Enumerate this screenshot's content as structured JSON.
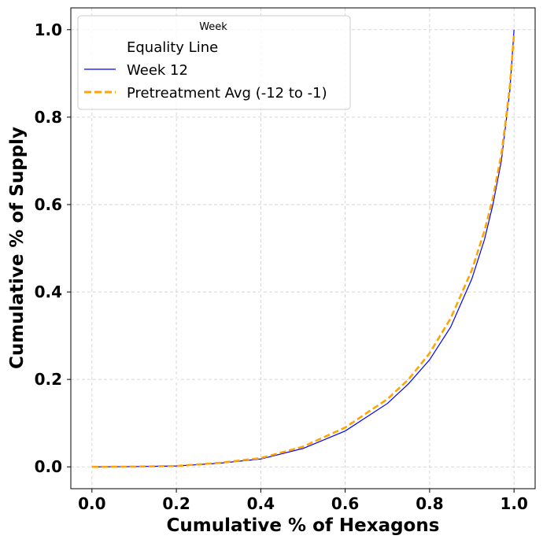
{
  "chart_data": {
    "type": "line",
    "xlabel": "Cumulative % of Hexagons",
    "ylabel": "Cumulative % of Supply",
    "xlim": [
      -0.05,
      1.05
    ],
    "ylim": [
      -0.05,
      1.05
    ],
    "xticks": [
      "0.0",
      "0.2",
      "0.4",
      "0.6",
      "0.8",
      "1.0"
    ],
    "yticks": [
      "0.0",
      "0.2",
      "0.4",
      "0.6",
      "0.8",
      "1.0"
    ],
    "grid": true,
    "legend": {
      "title": "Week",
      "placement": "top-left",
      "entries": [
        "Equality Line",
        "Week 12",
        "Pretreatment Avg (-12 to -1)"
      ]
    },
    "series": [
      {
        "name": "Equality Line",
        "color": "#ffffff",
        "style": "solid",
        "x": [
          0,
          1
        ],
        "y": [
          0,
          1
        ]
      },
      {
        "name": "Week 12",
        "color": "#0000ff",
        "style": "solid",
        "x": [
          0,
          0.1,
          0.2,
          0.3,
          0.4,
          0.5,
          0.6,
          0.7,
          0.75,
          0.8,
          0.85,
          0.9,
          0.93,
          0.95,
          0.97,
          0.98,
          0.99,
          1.0
        ],
        "y": [
          0,
          0.0005,
          0.002,
          0.008,
          0.018,
          0.042,
          0.082,
          0.145,
          0.19,
          0.245,
          0.32,
          0.43,
          0.52,
          0.6,
          0.7,
          0.78,
          0.86,
          1.0
        ]
      },
      {
        "name": "Pretreatment Avg (-12 to -1)",
        "color": "#ffa500",
        "style": "dashed",
        "x": [
          0,
          0.1,
          0.2,
          0.3,
          0.4,
          0.5,
          0.6,
          0.7,
          0.75,
          0.8,
          0.85,
          0.9,
          0.93,
          0.95,
          0.97,
          0.98,
          0.99,
          1.0
        ],
        "y": [
          0,
          0.0005,
          0.002,
          0.009,
          0.02,
          0.046,
          0.09,
          0.155,
          0.2,
          0.26,
          0.34,
          0.45,
          0.54,
          0.615,
          0.715,
          0.79,
          0.87,
          0.99
        ]
      }
    ]
  }
}
